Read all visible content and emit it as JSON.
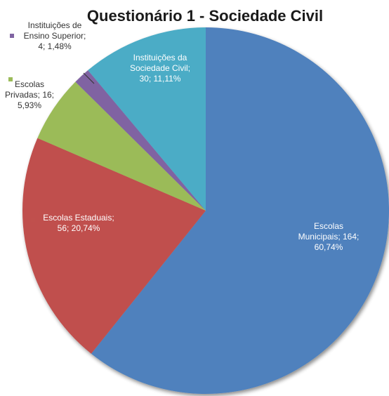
{
  "chart_data": {
    "type": "pie",
    "title": "Questionário 1 - Sociedade Civil",
    "slices": [
      {
        "name": "Escolas Municipais",
        "value": 164,
        "percent": "60,74%",
        "color": "#4f81bd",
        "label_lines": [
          "Escolas",
          "Municipais; 164;",
          "60,74%"
        ],
        "label_color": "#ffffff"
      },
      {
        "name": "Escolas Estaduais",
        "value": 56,
        "percent": "20,74%",
        "color": "#c0504d",
        "label_lines": [
          "Escolas Estaduais;",
          "56; 20,74%"
        ],
        "label_color": "#ffffff"
      },
      {
        "name": "Escolas Privadas",
        "value": 16,
        "percent": "5,93%",
        "color": "#9bbb59",
        "label_lines": [
          "Escolas",
          "Privadas; 16;",
          "5,93%"
        ],
        "label_color": "#333333"
      },
      {
        "name": "Instituições de Ensino Superior",
        "value": 4,
        "percent": "1,48%",
        "color": "#8064a2",
        "label_lines": [
          "Instituições de",
          "Ensino Superior;",
          "4; 1,48%"
        ],
        "label_color": "#333333"
      },
      {
        "name": "Instituições da Sociedade Civil",
        "value": 30,
        "percent": "11,11%",
        "color": "#4bacc6",
        "label_lines": [
          "Instituições da",
          "Sociedade Civil;",
          "30; 11,11%"
        ],
        "label_color": "#ffffff"
      }
    ],
    "start": "top",
    "direction": "clockwise"
  }
}
